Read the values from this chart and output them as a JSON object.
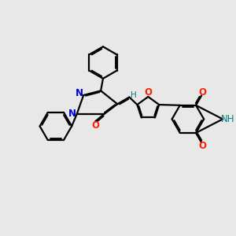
{
  "bg_color": "#e8e8e8",
  "bond_color": "#000000",
  "line_width": 1.6,
  "font_size_atom": 8.5,
  "N_color": "#0000cc",
  "O_color": "#ff2200",
  "H_color": "#008080",
  "figsize": [
    3.0,
    3.0
  ],
  "dpi": 100,
  "xlim": [
    0,
    10
  ],
  "ylim": [
    1,
    9.5
  ]
}
